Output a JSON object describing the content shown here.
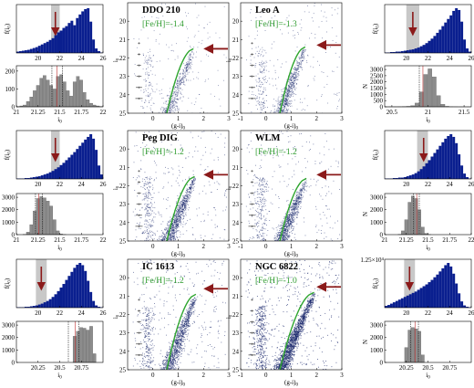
{
  "colors": {
    "bar_blue": "#0a1f8f",
    "bar_gray": "#8c8c8c",
    "shade": "#c8c8c8",
    "arrow_red": "#8b1a1a",
    "isochrone_green": "#2ea52e",
    "point_navy": "#1c2a6e",
    "line_red": "#c03030"
  },
  "chart_data": [
    {
      "id": "dd210-lf",
      "type": "bar",
      "galaxy": "DDO 210",
      "ylabel": "f(i0)",
      "xticks": [
        20,
        22,
        24,
        26
      ],
      "xlim": [
        18,
        26
      ],
      "shade": [
        21.2,
        22.0
      ],
      "arrow_x": 21.6,
      "values": [
        0.3,
        0.4,
        0.5,
        0.6,
        0.7,
        0.9,
        1.1,
        1.3,
        1.6,
        1.9,
        2.2,
        2.5,
        2.9,
        3.3,
        4.0,
        4.6,
        5.0,
        5.6,
        6.0,
        6.7,
        7.2,
        6.2,
        7.8,
        8.6,
        9.3,
        9.8,
        10.0,
        7.0,
        3.0,
        1.0,
        0.4,
        0.1
      ]
    },
    {
      "id": "dd210-trgb",
      "type": "bar",
      "xlabel": "i0",
      "ylabel": "N",
      "xticks": [
        21,
        21.25,
        21.5,
        21.75,
        22
      ],
      "yticks": [
        0,
        100,
        200
      ],
      "xlim": [
        21,
        22
      ],
      "ylim": [
        0,
        230
      ],
      "lines": [
        21.41,
        21.47,
        21.53
      ],
      "values": [
        2,
        5,
        10,
        30,
        55,
        90,
        120,
        160,
        175,
        150,
        120,
        100,
        170,
        180,
        140,
        90,
        60,
        140,
        170,
        150,
        80,
        40,
        20,
        10,
        5,
        2
      ]
    },
    {
      "id": "dd210-cmd",
      "type": "scatter",
      "galaxy": "DDO 210",
      "metallicity": "[Fe/H]=-1.4",
      "ylabel": "i0",
      "xticks": [
        0,
        1,
        2,
        3
      ],
      "yticks": [
        20,
        21,
        22,
        23,
        24,
        25
      ],
      "xlim": [
        -1,
        3
      ],
      "ylim": [
        25,
        19
      ],
      "density": 0.55,
      "tip_mag": 21.5,
      "tip_color": 1.6,
      "arrow_y": 21.5
    },
    {
      "id": "leoa-cmd",
      "type": "scatter",
      "galaxy": "Leo A",
      "metallicity": "[Fe/H]=-1.3",
      "ylabel": "i0",
      "xticks": [
        -1,
        0,
        1,
        2,
        3
      ],
      "yticks": [
        20,
        21,
        22,
        23,
        24,
        25
      ],
      "xlim": [
        -1,
        3
      ],
      "ylim": [
        25,
        19
      ],
      "density": 0.75,
      "tip_mag": 21.4,
      "tip_color": 1.55,
      "arrow_y": 21.3
    },
    {
      "id": "leoa-lf",
      "type": "bar",
      "galaxy": "Leo A",
      "ylabel": "f(i0)",
      "xticks": [
        20,
        22,
        24,
        26
      ],
      "xlim": [
        18,
        26
      ],
      "shade": [
        20.0,
        21.2
      ],
      "arrow_x": 20.6,
      "values": [
        0.1,
        0.1,
        0.2,
        0.2,
        0.3,
        0.3,
        0.4,
        0.5,
        0.6,
        0.7,
        0.8,
        1.0,
        1.2,
        1.5,
        1.8,
        2.2,
        2.7,
        3.2,
        3.8,
        4.5,
        5.2,
        6.0,
        6.8,
        7.6,
        8.4,
        9.4,
        10.0,
        9.6,
        7.0,
        3.0,
        1.0,
        0.3
      ]
    },
    {
      "id": "leoa-trgb",
      "type": "bar",
      "xlabel": "i0",
      "ylabel": "N",
      "xticks": [
        20.5,
        21,
        21.5
      ],
      "yticks": [
        0,
        500,
        1000,
        1500,
        2000,
        2500,
        3000
      ],
      "xlim": [
        20.4,
        21.6
      ],
      "ylim": [
        0,
        3300
      ],
      "lines": [
        20.88,
        20.93
      ],
      "values": [
        2,
        5,
        8,
        10,
        20,
        40,
        90,
        300,
        1200,
        2600,
        3050,
        2400,
        900,
        200,
        40,
        10,
        5,
        2,
        1,
        1
      ]
    },
    {
      "id": "pegdig-lf",
      "type": "bar",
      "galaxy": "Peg DIG",
      "ylabel": "f(i0)",
      "xticks": [
        20,
        22,
        24,
        26
      ],
      "xlim": [
        18,
        26
      ],
      "shade": [
        21.2,
        22.0
      ],
      "arrow_x": 21.6,
      "values": [
        0.1,
        0.1,
        0.1,
        0.2,
        0.2,
        0.3,
        0.4,
        0.5,
        0.6,
        0.8,
        1.0,
        1.2,
        1.5,
        1.8,
        2.2,
        2.6,
        3.1,
        3.6,
        4.2,
        4.8,
        5.4,
        6.0,
        6.7,
        7.4,
        8.1,
        8.8,
        9.4,
        10.0,
        9.0,
        6.5,
        3.0,
        1.0
      ]
    },
    {
      "id": "pegdig-trgb",
      "type": "bar",
      "xlabel": "i0",
      "ylabel": "N",
      "xticks": [
        21,
        21.25,
        21.5,
        21.75,
        22
      ],
      "yticks": [
        0,
        1000,
        2000,
        3000
      ],
      "xlim": [
        21,
        22
      ],
      "ylim": [
        0,
        3300
      ],
      "lines": [
        21.22,
        21.26,
        21.3
      ],
      "values": [
        0,
        0,
        20,
        200,
        800,
        1900,
        2900,
        3050,
        2950,
        2700,
        2300,
        1200,
        300,
        50,
        10,
        0,
        0,
        0,
        0,
        0,
        0,
        0,
        0,
        0,
        0,
        0
      ]
    },
    {
      "id": "pegdig-cmd",
      "type": "scatter",
      "galaxy": "Peg DIG",
      "metallicity": "[Fe/H]=-1.2",
      "ylabel": "i0",
      "xticks": [
        0,
        1,
        2,
        3
      ],
      "yticks": [
        20,
        21,
        22,
        23,
        24,
        25
      ],
      "xlim": [
        -1,
        3
      ],
      "ylim": [
        25,
        19
      ],
      "density": 1.0,
      "tip_mag": 21.5,
      "tip_color": 1.65,
      "arrow_y": 21.4
    },
    {
      "id": "wlm-cmd",
      "type": "scatter",
      "galaxy": "WLM",
      "metallicity": "[Fe/H]=-1.2",
      "ylabel": "i0",
      "xticks": [
        -1,
        0,
        1,
        2,
        3
      ],
      "yticks": [
        20,
        21,
        22,
        23,
        24,
        25
      ],
      "xlim": [
        -1,
        3
      ],
      "ylim": [
        25,
        19
      ],
      "density": 0.95,
      "tip_mag": 21.6,
      "tip_color": 1.6,
      "arrow_y": 21.4
    },
    {
      "id": "wlm-lf",
      "type": "bar",
      "galaxy": "WLM",
      "ylabel": "f(i0)",
      "xticks": [
        20,
        22,
        24,
        26
      ],
      "xlim": [
        18,
        26
      ],
      "shade": [
        21.0,
        22.0
      ],
      "arrow_x": 21.6,
      "values": [
        0.1,
        0.1,
        0.1,
        0.2,
        0.2,
        0.3,
        0.3,
        0.4,
        0.6,
        0.8,
        1.0,
        1.3,
        1.7,
        2.2,
        2.8,
        3.5,
        4.2,
        5.0,
        5.8,
        6.6,
        7.4,
        8.2,
        9.0,
        9.6,
        10.0,
        9.4,
        8.0,
        5.5,
        3.0,
        1.2,
        0.4,
        0.1
      ]
    },
    {
      "id": "wlm-trgb",
      "type": "bar",
      "xlabel": "i0",
      "ylabel": "N",
      "xticks": [
        21,
        21.25,
        21.5,
        21.75,
        22
      ],
      "yticks": [
        0,
        1000,
        2000,
        3000
      ],
      "xlim": [
        21,
        22
      ],
      "ylim": [
        0,
        3300
      ],
      "lines": [
        21.33,
        21.37,
        21.4
      ],
      "values": [
        0,
        0,
        0,
        0,
        20,
        300,
        1200,
        2600,
        3100,
        2900,
        2000,
        600,
        100,
        10,
        0,
        0,
        0,
        0,
        0,
        0,
        0,
        0,
        0,
        0,
        0,
        0
      ]
    },
    {
      "id": "ic1613-lf",
      "type": "bar",
      "galaxy": "IC 1613",
      "ylabel": "f(i0)",
      "xticks": [
        20,
        22,
        24,
        26
      ],
      "xlim": [
        18,
        26
      ],
      "shade": [
        19.8,
        20.8
      ],
      "arrow_x": 20.3,
      "values": [
        0.1,
        0.1,
        0.1,
        0.2,
        0.2,
        0.3,
        0.4,
        0.5,
        0.7,
        0.9,
        1.2,
        1.5,
        1.9,
        2.4,
        3.0,
        3.7,
        4.5,
        5.3,
        6.2,
        7.1,
        8.0,
        8.9,
        9.6,
        10.0,
        9.5,
        8.2,
        6.0,
        3.5,
        1.5,
        0.5,
        0.2,
        0.1
      ]
    },
    {
      "id": "ic1613-trgb",
      "type": "bar",
      "xlabel": "i0",
      "ylabel": "N",
      "xticks": [
        20.25,
        20.5,
        20.75
      ],
      "yticks": [
        0,
        1000,
        2000,
        3000
      ],
      "xlim": [
        20,
        21
      ],
      "ylim": [
        0,
        3300
      ],
      "lines": [
        20.6,
        20.68,
        20.72
      ],
      "values": [
        0,
        0,
        0,
        0,
        0,
        0,
        0,
        0,
        0,
        0,
        0,
        0,
        0,
        0,
        0,
        0,
        0,
        2100,
        2500,
        2800,
        2750,
        2600,
        2900,
        700,
        0,
        0
      ]
    },
    {
      "id": "ic1613-cmd",
      "type": "scatter",
      "galaxy": "IC 1613",
      "metallicity": "[Fe/H]=-1.2",
      "ylabel": "i0",
      "xticks": [
        0,
        1,
        2,
        3
      ],
      "yticks": [
        20,
        21,
        22,
        23,
        24,
        25
      ],
      "xlim": [
        -1,
        3
      ],
      "ylim": [
        25,
        19
      ],
      "density": 1.15,
      "tip_mag": 20.9,
      "tip_color": 1.7,
      "arrow_y": 20.6
    },
    {
      "id": "ngc6822-cmd",
      "type": "scatter",
      "galaxy": "NGC 6822",
      "metallicity": "[Fe/H]=-1.0",
      "ylabel": "i0",
      "xticks": [
        -1,
        0,
        1,
        2,
        3
      ],
      "yticks": [
        20,
        21,
        22,
        23,
        24,
        25
      ],
      "xlim": [
        -1,
        3
      ],
      "ylim": [
        25,
        19
      ],
      "density": 1.6,
      "tip_mag": 20.8,
      "tip_color": 1.9,
      "arrow_y": 20.5
    },
    {
      "id": "ngc6822-lf",
      "type": "bar",
      "galaxy": "NGC 6822",
      "ylabel": "f(i0)",
      "ymax_label": "1.25×10⁴",
      "xticks": [
        20,
        22,
        24,
        26
      ],
      "xlim": [
        18,
        26
      ],
      "shade": [
        19.8,
        20.8
      ],
      "arrow_x": 20.3,
      "values": [
        0.4,
        0.6,
        0.9,
        1.2,
        1.5,
        1.8,
        2.1,
        2.4,
        2.7,
        3.0,
        3.3,
        3.6,
        4.0,
        4.4,
        4.8,
        5.2,
        5.7,
        6.2,
        6.8,
        7.4,
        8.1,
        8.8,
        9.5,
        10.0,
        9.2,
        7.6,
        5.4,
        3.2,
        1.4,
        0.5,
        0.2,
        0.1
      ]
    },
    {
      "id": "ngc6822-trgb",
      "type": "bar",
      "xlabel": "i0",
      "ylabel": "N",
      "xticks": [
        20.25,
        20.5,
        20.75
      ],
      "yticks": [
        0,
        1000,
        2000,
        3000
      ],
      "xlim": [
        20,
        21
      ],
      "ylim": [
        0,
        3300
      ],
      "lines": [
        20.3,
        20.35,
        20.39
      ],
      "values": [
        0,
        0,
        0,
        0,
        0,
        0,
        1200,
        2600,
        2800,
        2700,
        2500,
        600,
        0,
        0,
        0,
        0,
        0,
        0,
        0,
        0,
        0,
        0,
        0,
        0,
        0,
        0
      ]
    }
  ]
}
